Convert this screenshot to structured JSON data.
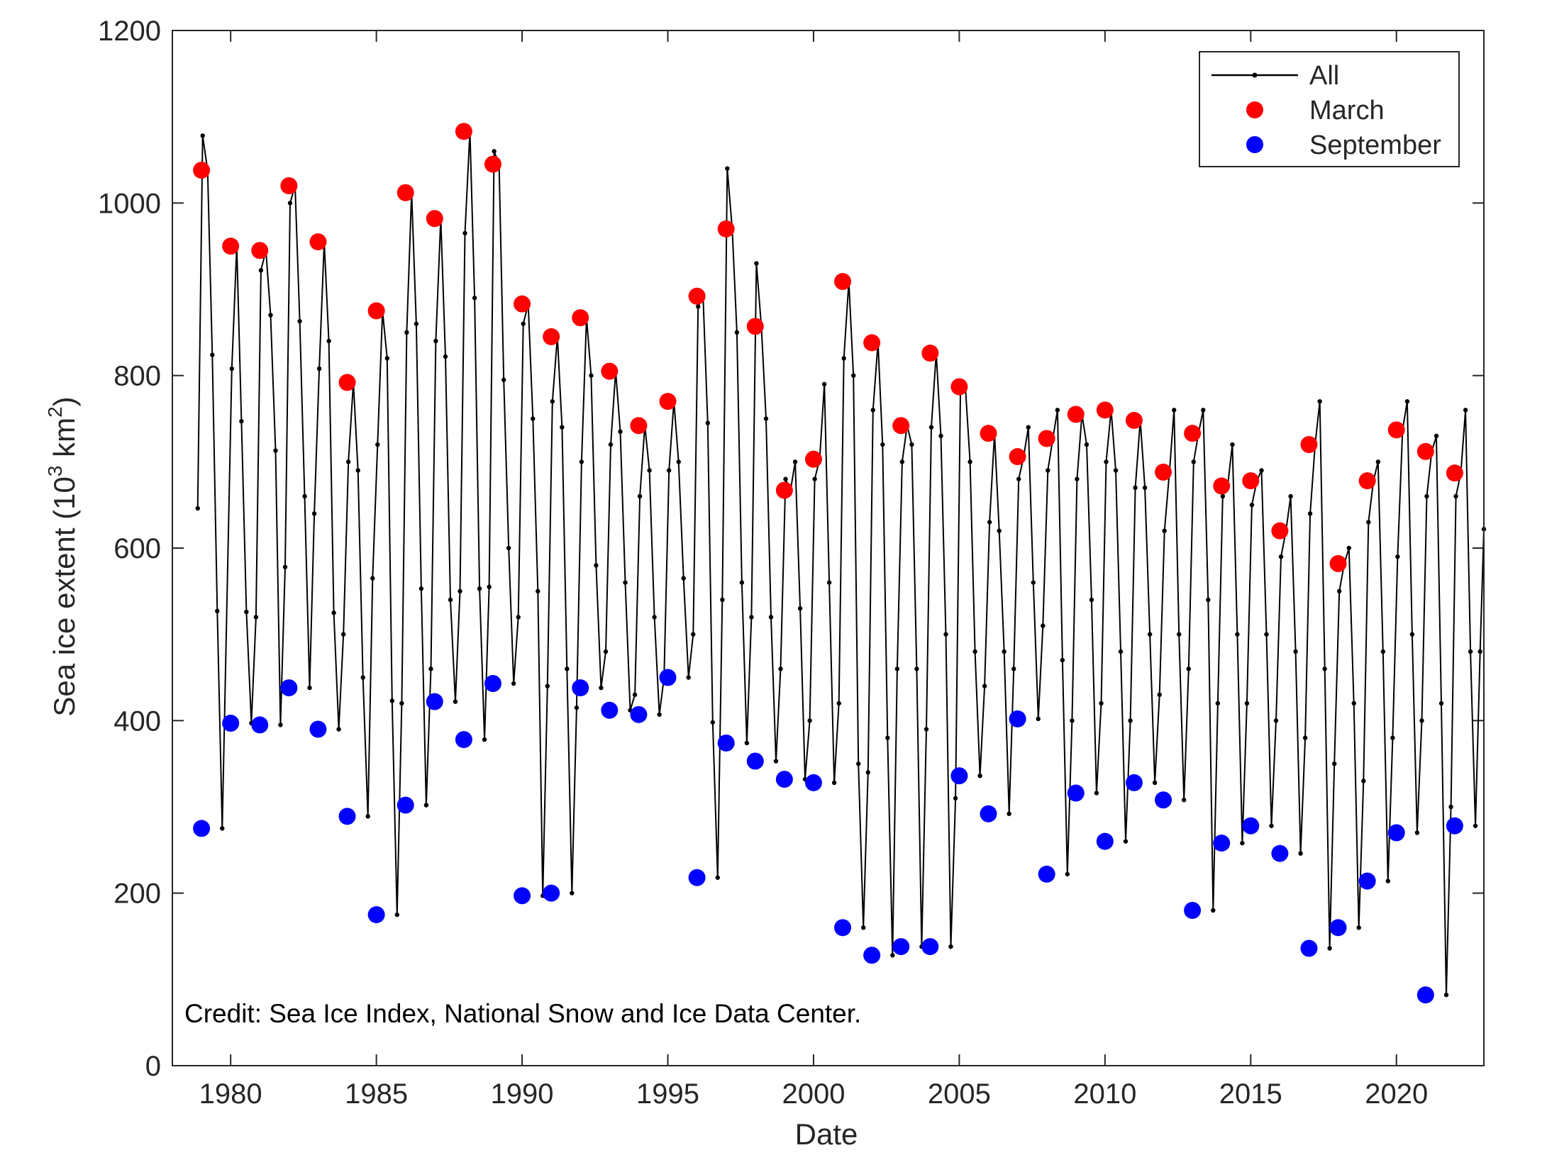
{
  "chart_data": {
    "type": "line",
    "xlabel": "Date",
    "ylabel_main": "Sea ice extent (10",
    "ylabel_exp1": "3",
    "ylabel_mid": " km",
    "ylabel_exp2": "2",
    "ylabel_end": ")",
    "credit": "Credit: Sea Ice Index, National Snow and Ice Data Center.",
    "xlim": [
      1978.0,
      2023.0
    ],
    "ylim": [
      0,
      1200
    ],
    "xticks": [
      1980,
      1985,
      1990,
      1995,
      2000,
      2005,
      2010,
      2015,
      2020
    ],
    "yticks": [
      0,
      200,
      400,
      600,
      800,
      1000,
      1200
    ],
    "grid": false,
    "legend": {
      "placement": "top-right",
      "entries": [
        "All",
        "March",
        "September"
      ]
    },
    "colors": {
      "all": "#000000",
      "march": "#ff0000",
      "september": "#0000ff"
    },
    "series": [
      {
        "name": "March",
        "x": [
          1979,
          1980,
          1981,
          1982,
          1983,
          1984,
          1985,
          1986,
          1987,
          1988,
          1989,
          1990,
          1991,
          1992,
          1993,
          1994,
          1995,
          1996,
          1997,
          1998,
          1999,
          2000,
          2001,
          2002,
          2003,
          2004,
          2005,
          2006,
          2007,
          2008,
          2009,
          2010,
          2011,
          2012,
          2013,
          2014,
          2015,
          2016,
          2017,
          2018,
          2019,
          2020,
          2021,
          2022
        ],
        "values": [
          1038,
          950,
          945,
          1020,
          955,
          792,
          875,
          1012,
          982,
          1083,
          1045,
          883,
          845,
          867,
          805,
          742,
          770,
          892,
          970,
          857,
          667,
          703,
          909,
          838,
          742,
          826,
          787,
          733,
          706,
          727,
          755,
          760,
          748,
          688,
          733,
          672,
          678,
          620,
          720,
          582,
          678,
          737,
          712,
          687
        ]
      },
      {
        "name": "September",
        "x": [
          1979,
          1980,
          1981,
          1982,
          1983,
          1984,
          1985,
          1986,
          1987,
          1988,
          1989,
          1990,
          1991,
          1992,
          1993,
          1994,
          1995,
          1996,
          1997,
          1998,
          1999,
          2000,
          2001,
          2002,
          2003,
          2004,
          2005,
          2006,
          2007,
          2008,
          2009,
          2010,
          2011,
          2012,
          2013,
          2014,
          2015,
          2016,
          2017,
          2018,
          2019,
          2020,
          2021,
          2022
        ],
        "values": [
          275,
          397,
          395,
          438,
          390,
          289,
          175,
          302,
          422,
          378,
          443,
          197,
          200,
          438,
          412,
          407,
          450,
          218,
          374,
          353,
          332,
          328,
          160,
          128,
          138,
          138,
          336,
          292,
          402,
          222,
          316,
          260,
          328,
          308,
          180,
          258,
          278,
          246,
          136,
          160,
          214,
          270,
          82,
          278
        ]
      },
      {
        "name": "All",
        "x": [
          1978.87,
          1979.04,
          1979.21,
          1979.37,
          1979.54,
          1979.71,
          1980.04,
          1980.21,
          1980.37,
          1980.54,
          1980.71,
          1980.87,
          1981.04,
          1981.21,
          1981.37,
          1981.54,
          1981.71,
          1981.87,
          1982.04,
          1982.21,
          1982.37,
          1982.54,
          1982.71,
          1982.87,
          1983.04,
          1983.21,
          1983.37,
          1983.54,
          1983.71,
          1983.87,
          1984.04,
          1984.21,
          1984.37,
          1984.54,
          1984.71,
          1984.87,
          1985.04,
          1985.21,
          1985.37,
          1985.54,
          1985.71,
          1985.87,
          1986.04,
          1986.21,
          1986.37,
          1986.54,
          1986.71,
          1986.87,
          1987.04,
          1987.21,
          1987.37,
          1987.54,
          1987.71,
          1987.87,
          1988.04,
          1988.21,
          1988.37,
          1988.54,
          1988.71,
          1988.87,
          1989.04,
          1989.21,
          1989.37,
          1989.54,
          1989.71,
          1989.87,
          1990.04,
          1990.21,
          1990.37,
          1990.54,
          1990.71,
          1990.87,
          1991.04,
          1991.21,
          1991.37,
          1991.54,
          1991.71,
          1991.87,
          1992.04,
          1992.21,
          1992.37,
          1992.54,
          1992.71,
          1992.87,
          1993.04,
          1993.21,
          1993.37,
          1993.54,
          1993.71,
          1993.87,
          1994.04,
          1994.21,
          1994.37,
          1994.54,
          1994.71,
          1994.87,
          1995.04,
          1995.21,
          1995.37,
          1995.54,
          1995.71,
          1995.87,
          1996.04,
          1996.21,
          1996.37,
          1996.54,
          1996.71,
          1996.87,
          1997.04,
          1997.21,
          1997.37,
          1997.54,
          1997.71,
          1997.87,
          1998.04,
          1998.21,
          1998.37,
          1998.54,
          1998.71,
          1998.87,
          1999.04,
          1999.21,
          1999.37,
          1999.54,
          1999.71,
          1999.87,
          2000.04,
          2000.21,
          2000.37,
          2000.54,
          2000.71,
          2000.87,
          2001.04,
          2001.21,
          2001.37,
          2001.54,
          2001.71,
          2001.87,
          2002.04,
          2002.21,
          2002.37,
          2002.54,
          2002.71,
          2002.87,
          2003.04,
          2003.21,
          2003.37,
          2003.54,
          2003.71,
          2003.87,
          2004.04,
          2004.21,
          2004.37,
          2004.54,
          2004.71,
          2004.87,
          2005.04,
          2005.21,
          2005.37,
          2005.54,
          2005.71,
          2005.87,
          2006.04,
          2006.21,
          2006.37,
          2006.54,
          2006.71,
          2006.87,
          2007.04,
          2007.21,
          2007.37,
          2007.54,
          2007.71,
          2007.87,
          2008.04,
          2008.21,
          2008.37,
          2008.54,
          2008.71,
          2008.87,
          2009.04,
          2009.21,
          2009.37,
          2009.54,
          2009.71,
          2009.87,
          2010.04,
          2010.21,
          2010.37,
          2010.54,
          2010.71,
          2010.87,
          2011.04,
          2011.21,
          2011.37,
          2011.54,
          2011.71,
          2011.87,
          2012.04,
          2012.21,
          2012.37,
          2012.54,
          2012.71,
          2012.87,
          2013.04,
          2013.21,
          2013.37,
          2013.54,
          2013.71,
          2013.87,
          2014.04,
          2014.21,
          2014.37,
          2014.54,
          2014.71,
          2014.87,
          2015.04,
          2015.21,
          2015.37,
          2015.54,
          2015.71,
          2015.87,
          2016.04,
          2016.21,
          2016.37,
          2016.54,
          2016.71,
          2016.87,
          2017.04,
          2017.21,
          2017.37,
          2017.54,
          2017.71,
          2017.87,
          2018.04,
          2018.21,
          2018.37,
          2018.54,
          2018.71,
          2018.87,
          2019.04,
          2019.21,
          2019.37,
          2019.54,
          2019.71,
          2019.87,
          2020.04,
          2020.21,
          2020.37,
          2020.54,
          2020.71,
          2020.87,
          2021.04,
          2021.21,
          2021.37,
          2021.54,
          2021.71,
          2021.87,
          2022.04,
          2022.21,
          2022.37,
          2022.54,
          2022.71,
          2022.87,
          2023.0
        ],
        "values": [
          646,
          1078,
          1038,
          824,
          527,
          275,
          808,
          950,
          747,
          526,
          397,
          520,
          922,
          945,
          870,
          713,
          395,
          578,
          1000,
          1020,
          863,
          660,
          438,
          640,
          808,
          955,
          840,
          525,
          390,
          500,
          700,
          792,
          690,
          450,
          289,
          565,
          720,
          875,
          820,
          423,
          175,
          420,
          850,
          1012,
          860,
          553,
          302,
          460,
          840,
          982,
          822,
          540,
          422,
          550,
          965,
          1083,
          890,
          553,
          378,
          555,
          1060,
          1045,
          795,
          600,
          443,
          520,
          860,
          883,
          750,
          550,
          197,
          440,
          770,
          845,
          740,
          460,
          200,
          415,
          700,
          867,
          800,
          580,
          438,
          480,
          720,
          805,
          735,
          560,
          412,
          430,
          660,
          742,
          690,
          520,
          407,
          450,
          690,
          770,
          700,
          565,
          450,
          500,
          880,
          892,
          745,
          398,
          218,
          540,
          1040,
          970,
          850,
          560,
          374,
          520,
          930,
          857,
          750,
          520,
          353,
          460,
          680,
          667,
          700,
          530,
          332,
          400,
          680,
          703,
          790,
          560,
          328,
          420,
          820,
          909,
          800,
          350,
          160,
          340,
          760,
          838,
          720,
          380,
          128,
          460,
          700,
          742,
          720,
          460,
          138,
          390,
          740,
          826,
          730,
          500,
          138,
          310,
          780,
          787,
          700,
          480,
          336,
          440,
          630,
          733,
          620,
          480,
          292,
          460,
          680,
          706,
          740,
          560,
          402,
          510,
          690,
          727,
          760,
          470,
          222,
          400,
          680,
          755,
          720,
          540,
          316,
          420,
          700,
          760,
          690,
          480,
          260,
          400,
          670,
          748,
          670,
          500,
          328,
          430,
          620,
          688,
          760,
          500,
          308,
          460,
          700,
          733,
          760,
          540,
          180,
          420,
          660,
          672,
          720,
          500,
          258,
          420,
          650,
          678,
          690,
          500,
          278,
          400,
          590,
          620,
          660,
          480,
          246,
          380,
          640,
          720,
          770,
          460,
          136,
          350,
          550,
          582,
          600,
          420,
          160,
          330,
          630,
          678,
          700,
          480,
          214,
          380,
          590,
          737,
          770,
          500,
          270,
          400,
          660,
          712,
          730,
          420,
          82,
          300,
          660,
          687,
          760,
          480,
          278,
          480,
          622
        ]
      }
    ]
  }
}
